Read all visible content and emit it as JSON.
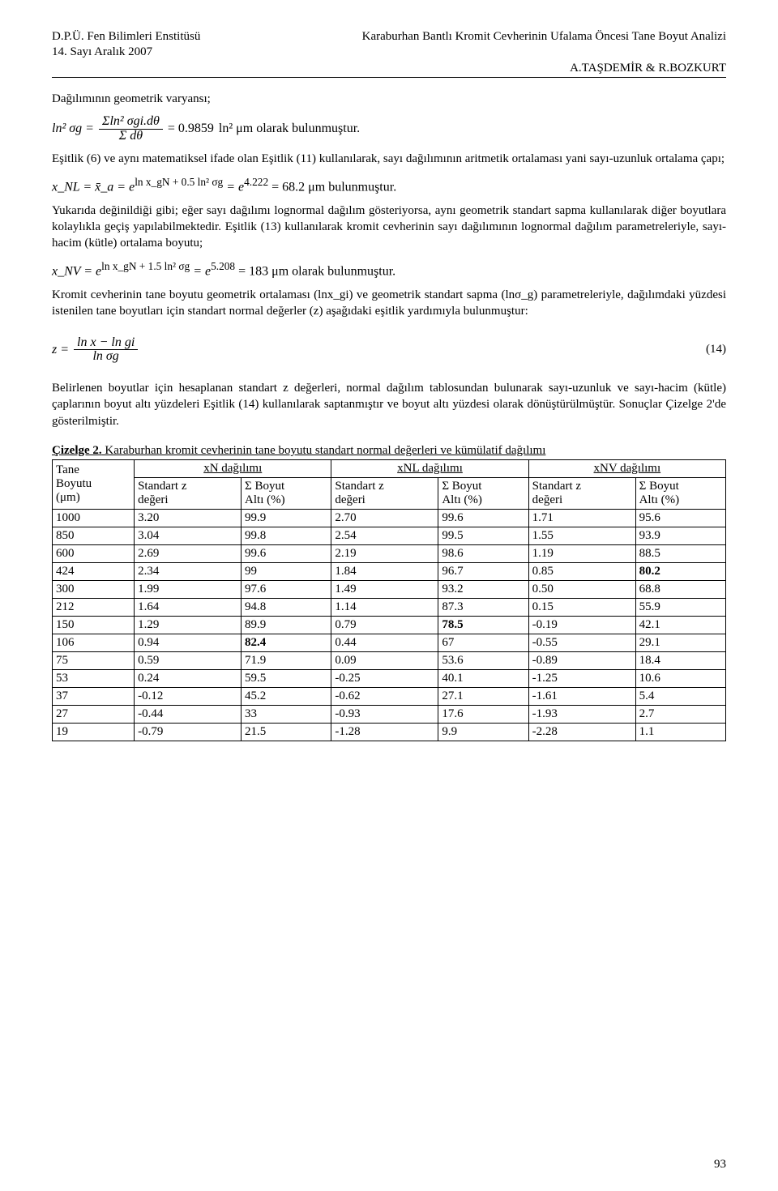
{
  "header": {
    "left_line1": "D.P.Ü. Fen Bilimleri Enstitüsü",
    "left_line2": "14. Sayı           Aralık 2007",
    "right_line1": "Karaburhan Bantlı Kromit Cevherinin Ufalama Öncesi Tane Boyut Analizi",
    "authors": "A.TAŞDEMİR & R.BOZKURT"
  },
  "body": {
    "p1": "Dağılımının geometrik varyansı;",
    "eq1_lhs": "ln² σg =",
    "eq1_num": "Σln² σgi.dθ",
    "eq1_den": "Σ dθ",
    "eq1_val": "= 0.9859",
    "eq1_rhs": " ln² μm olarak bulunmuştur.",
    "p2": "Eşitlik (6) ve aynı matematiksel ifade olan Eşitlik (11) kullanılarak,  sayı dağılımının aritmetik ortalaması yani sayı-uzunluk ortalama çapı;",
    "eq2_left": "x_NL = x̄_a = e",
    "eq2_exp": "ln x_gN + 0.5 ln² σg",
    "eq2_mid": " = e",
    "eq2_exp2": "4.222",
    "eq2_rhs": " = 68.2  μm bulunmuştur.",
    "p3": "Yukarıda değinildiği gibi; eğer sayı dağılımı lognormal dağılım gösteriyorsa, aynı geometrik standart sapma kullanılarak diğer boyutlara kolaylıkla geçiş yapılabilmektedir. Eşitlik (13) kullanılarak kromit cevherinin sayı dağılımının lognormal dağılım parametreleriyle, sayı-hacim (kütle) ortalama boyutu;",
    "eq3_left": "x_NV = e",
    "eq3_exp": "ln x_gN + 1.5 ln² σg",
    "eq3_mid": " = e",
    "eq3_exp2": "5.208",
    "eq3_rhs": " = 183 μm olarak bulunmuştur.",
    "p4": "Kromit cevherinin tane boyutu geometrik ortalaması (lnx_gi) ve geometrik standart sapma (lnσ_g) parametreleriyle, dağılımdaki yüzdesi istenilen tane boyutları için standart normal değerler (z) aşağıdaki eşitlik yardımıyla bulunmuştur:",
    "eq4_lhs": "z =",
    "eq4_num": "ln x − ln gi",
    "eq4_den": "ln σg",
    "eq4_num_label": "(14)",
    "p5": "Belirlenen boyutlar için hesaplanan standart z değerleri, normal dağılım tablosundan bulunarak sayı-uzunluk ve sayı-hacim (kütle) çaplarının boyut altı yüzdeleri Eşitlik (14) kullanılarak saptanmıştır ve boyut altı yüzdesi olarak dönüştürülmüştür. Sonuçlar Çizelge 2'de gösterilmiştir."
  },
  "table": {
    "title_a": "Çizelge 2.",
    "title_b": " Karaburhan kromit cevherinin tane boyutu standart normal değerleri ve kümülatif dağılımı",
    "top_header": {
      "col1a": "Tane",
      "col1b": "Boyutu",
      "col1c": "(μm)",
      "grp1": "xN dağılımı",
      "grp2": "xNL dağılımı",
      "grp3": "xNV dağılımı",
      "sub_a": "Standart z",
      "sub_b": "değeri",
      "sub_c": "Σ Boyut",
      "sub_d": "Altı (%)"
    },
    "rows": [
      {
        "size": "1000",
        "z1": "3.20",
        "a1": "99.9",
        "z2": "2.70",
        "a2": "99.6",
        "z3": "1.71",
        "a3": "95.6",
        "bold": []
      },
      {
        "size": "850",
        "z1": "3.04",
        "a1": "99.8",
        "z2": "2.54",
        "a2": "99.5",
        "z3": "1.55",
        "a3": "93.9",
        "bold": []
      },
      {
        "size": "600",
        "z1": "2.69",
        "a1": "99.6",
        "z2": "2.19",
        "a2": "98.6",
        "z3": "1.19",
        "a3": "88.5",
        "bold": []
      },
      {
        "size": "424",
        "z1": "2.34",
        "a1": "99",
        "z2": "1.84",
        "a2": "96.7",
        "z3": "0.85",
        "a3": "80.2",
        "bold": [
          "a3"
        ]
      },
      {
        "size": "300",
        "z1": "1.99",
        "a1": "97.6",
        "z2": "1.49",
        "a2": "93.2",
        "z3": "0.50",
        "a3": "68.8",
        "bold": []
      },
      {
        "size": "212",
        "z1": "1.64",
        "a1": "94.8",
        "z2": "1.14",
        "a2": "87.3",
        "z3": "0.15",
        "a3": "55.9",
        "bold": []
      },
      {
        "size": "150",
        "z1": "1.29",
        "a1": "89.9",
        "z2": "0.79",
        "a2": "78.5",
        "z3": "-0.19",
        "a3": "42.1",
        "bold": [
          "a2"
        ]
      },
      {
        "size": "106",
        "z1": "0.94",
        "a1": "82.4",
        "z2": "0.44",
        "a2": "67",
        "z3": "-0.55",
        "a3": "29.1",
        "bold": [
          "a1"
        ]
      },
      {
        "size": "75",
        "z1": "0.59",
        "a1": "71.9",
        "z2": "0.09",
        "a2": "53.6",
        "z3": "-0.89",
        "a3": "18.4",
        "bold": []
      },
      {
        "size": "53",
        "z1": "0.24",
        "a1": "59.5",
        "z2": "-0.25",
        "a2": "40.1",
        "z3": "-1.25",
        "a3": "10.6",
        "bold": []
      },
      {
        "size": "37",
        "z1": "-0.12",
        "a1": "45.2",
        "z2": "-0.62",
        "a2": "27.1",
        "z3": "-1.61",
        "a3": "5.4",
        "bold": []
      },
      {
        "size": "27",
        "z1": "-0.44",
        "a1": "33",
        "z2": "-0.93",
        "a2": "17.6",
        "z3": "-1.93",
        "a3": "2.7",
        "bold": []
      },
      {
        "size": "19",
        "z1": "-0.79",
        "a1": "21.5",
        "z2": "-1.28",
        "a2": "9.9",
        "z3": "-2.28",
        "a3": "1.1",
        "bold": []
      }
    ]
  },
  "page_number": "93"
}
